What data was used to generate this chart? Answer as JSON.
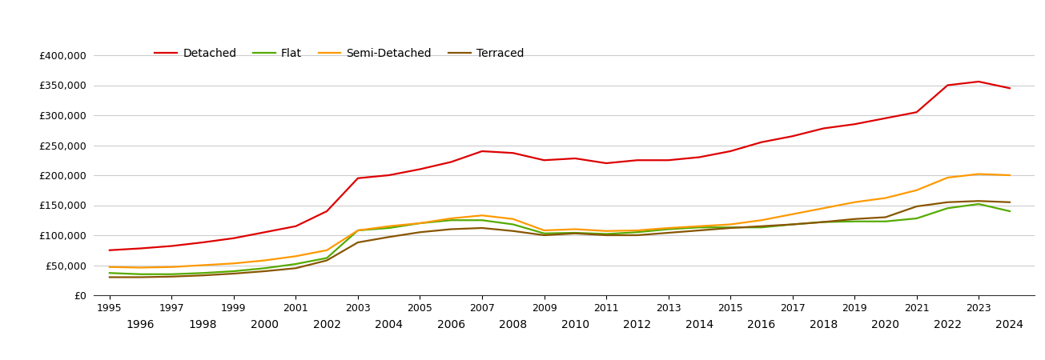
{
  "years": [
    1995,
    1996,
    1997,
    1998,
    1999,
    2000,
    2001,
    2002,
    2003,
    2004,
    2005,
    2006,
    2007,
    2008,
    2009,
    2010,
    2011,
    2012,
    2013,
    2014,
    2015,
    2016,
    2017,
    2018,
    2019,
    2020,
    2021,
    2022,
    2023,
    2024
  ],
  "detached": [
    75000,
    78000,
    82000,
    88000,
    95000,
    105000,
    115000,
    140000,
    195000,
    200000,
    210000,
    222000,
    240000,
    237000,
    225000,
    228000,
    220000,
    225000,
    225000,
    230000,
    240000,
    255000,
    265000,
    278000,
    285000,
    295000,
    305000,
    350000,
    356000,
    345000
  ],
  "flat": [
    37000,
    35000,
    35000,
    37000,
    40000,
    45000,
    52000,
    62000,
    108000,
    112000,
    120000,
    125000,
    125000,
    118000,
    103000,
    104000,
    102000,
    105000,
    110000,
    113000,
    113000,
    113000,
    118000,
    122000,
    123000,
    123000,
    128000,
    145000,
    152000,
    140000
  ],
  "semi_detached": [
    47000,
    46000,
    47000,
    50000,
    53000,
    58000,
    65000,
    75000,
    108000,
    115000,
    120000,
    128000,
    133000,
    127000,
    108000,
    110000,
    107000,
    108000,
    112000,
    115000,
    118000,
    125000,
    135000,
    145000,
    155000,
    162000,
    175000,
    196000,
    202000,
    200000
  ],
  "terraced": [
    30000,
    30000,
    31000,
    33000,
    36000,
    40000,
    45000,
    58000,
    88000,
    97000,
    105000,
    110000,
    112000,
    107000,
    100000,
    103000,
    100000,
    100000,
    104000,
    108000,
    112000,
    115000,
    118000,
    122000,
    127000,
    130000,
    148000,
    155000,
    157000,
    155000
  ],
  "colors": {
    "detached": "#dd0000",
    "flat": "#55aa00",
    "semi_detached": "#ff9900",
    "terraced": "#885500"
  },
  "legend_labels": [
    "Detached",
    "Flat",
    "Semi-Detached",
    "Terraced"
  ],
  "ylim": [
    0,
    420000
  ],
  "yticks": [
    0,
    50000,
    100000,
    150000,
    200000,
    250000,
    300000,
    350000,
    400000
  ],
  "background_color": "#ffffff",
  "grid_color": "#cccccc",
  "odd_years": [
    1995,
    1997,
    1999,
    2001,
    2003,
    2005,
    2007,
    2009,
    2011,
    2013,
    2015,
    2017,
    2019,
    2021,
    2023
  ],
  "even_years": [
    1996,
    1998,
    2000,
    2002,
    2004,
    2006,
    2008,
    2010,
    2012,
    2014,
    2016,
    2018,
    2020,
    2022,
    2024
  ]
}
